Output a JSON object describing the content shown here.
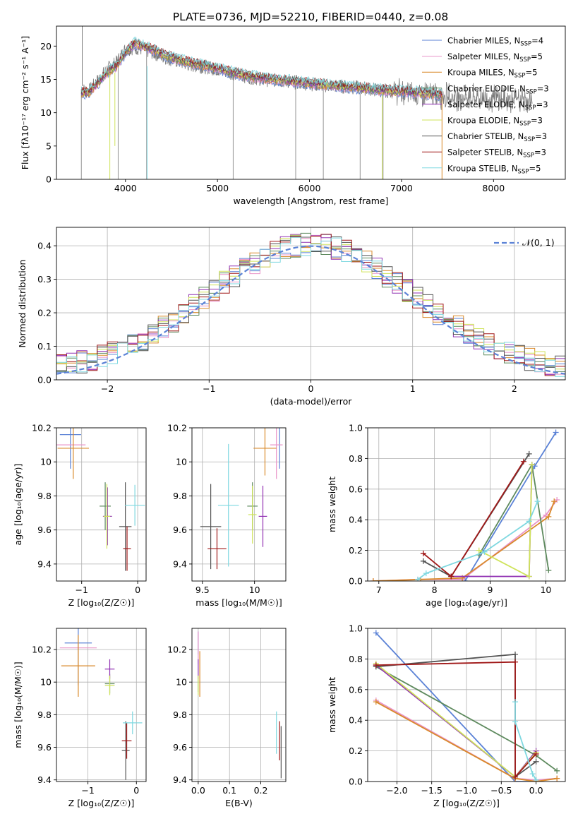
{
  "title": "PLATE=0736, MJD=52210, FIBERID=0440, z=0.08",
  "colors": [
    "#5b82d6",
    "#e994c8",
    "#d98a2a",
    "#5e8a5e",
    "#9132b3",
    "#cfe35a",
    "#555555",
    "#a01818",
    "#7fd8e0"
  ],
  "legend_labels": [
    {
      "base": "Chabrier MILES, N",
      "sub": "SSP",
      "tail": "=4"
    },
    {
      "base": "Salpeter MILES, N",
      "sub": "SSP",
      "tail": "=5"
    },
    {
      "base": "Kroupa MILES, N",
      "sub": "SSP",
      "tail": "=5"
    },
    {
      "base": "Chabrier ELODIE, N",
      "sub": "SSP",
      "tail": "=3"
    },
    {
      "base": "Salpeter ELODIE, N",
      "sub": "SSP",
      "tail": "=3"
    },
    {
      "base": "Kroupa ELODIE, N",
      "sub": "SSP",
      "tail": "=3"
    },
    {
      "base": "Chabrier STELIB, N",
      "sub": "SSP",
      "tail": "=3"
    },
    {
      "base": "Salpeter STELIB, N",
      "sub": "SSP",
      "tail": "=3"
    },
    {
      "base": "Kroupa STELIB, N",
      "sub": "SSP",
      "tail": "=5"
    }
  ],
  "chart_data": [
    {
      "id": "spectrum",
      "type": "line",
      "xlabel": "wavelength [Angstrom, rest frame]",
      "ylabel": "Flux [fλ10⁻¹⁷ erg cm⁻² s⁻¹ A⁻¹]",
      "xlim": [
        3250,
        8780
      ],
      "ylim": [
        0,
        23
      ],
      "xticks": [
        4000,
        5000,
        6000,
        7000,
        8000
      ],
      "yticks": [
        0,
        5,
        10,
        15,
        20
      ],
      "grid": false,
      "legend": "top-right",
      "data_x": [
        3520,
        3600,
        3700,
        3800,
        3900,
        4000,
        4100,
        4200,
        4300,
        4400,
        4500,
        4700,
        4900,
        5100,
        5300,
        5500,
        5700,
        5900,
        6100,
        6300,
        6500,
        6700,
        6900,
        7100,
        7300,
        7500,
        7700,
        7900,
        8100,
        8300,
        8500,
        8780
      ],
      "data_y": [
        13.5,
        13.2,
        14.8,
        16.5,
        17.5,
        19.5,
        19.8,
        19.5,
        19.0,
        18.5,
        18.0,
        17.2,
        16.8,
        16.2,
        15.5,
        15.0,
        14.8,
        14.5,
        14.2,
        14.0,
        13.8,
        13.5,
        13.2,
        13.0,
        12.8,
        12.5,
        12.3,
        12.2,
        12.0,
        11.8,
        11.6,
        11.5
      ],
      "model_y": [
        13.0,
        13.0,
        14.5,
        16.0,
        17.0,
        19.0,
        20.5,
        20.0,
        19.5,
        18.8,
        18.3,
        17.5,
        17.0,
        16.3,
        15.6,
        15.2,
        14.9,
        14.6,
        14.3,
        14.0,
        13.8,
        13.5,
        13.3,
        13.1,
        12.9,
        12.6,
        12.4,
        12.2,
        12.0,
        11.9,
        11.7,
        11.5
      ],
      "model_x_end": 7440
    },
    {
      "id": "residual-histogram",
      "type": "histogram",
      "xlabel": "(data-model)/error",
      "ylabel": "Normed distribution",
      "xlim": [
        -2.5,
        2.5
      ],
      "ylim": [
        0,
        0.455
      ],
      "xticks": [
        -2,
        -1,
        0,
        1,
        2
      ],
      "yticks": [
        0.0,
        0.1,
        0.2,
        0.3,
        0.4
      ],
      "grid": true,
      "legend": "top-right",
      "legend_label": "𝒩(0, 1)",
      "bin_width": 0.1,
      "reference_curve": "normal(0,1)",
      "reference_color": "#5b82d6"
    },
    {
      "id": "age-vs-metallicity",
      "type": "errorbar",
      "xlabel": "Z [log₁₀(Z/Z☉)]",
      "ylabel": "age  [log₁₀(age/yr)]",
      "xlim": [
        -1.45,
        0.15
      ],
      "ylim": [
        9.3,
        10.2
      ],
      "xticks": [
        -1,
        0
      ],
      "yticks": [
        9.4,
        9.6,
        9.8,
        10.0,
        10.2
      ],
      "grid": true,
      "points": [
        {
          "x": -1.2,
          "y": 10.16,
          "xerr": 0.19,
          "yerr": 0.2,
          "c": 0
        },
        {
          "x": -1.2,
          "y": 10.1,
          "xerr": 0.27,
          "yerr": 0.0,
          "c": 1
        },
        {
          "x": -1.15,
          "y": 10.08,
          "xerr": 0.28,
          "yerr": 0.18,
          "c": 2
        },
        {
          "x": -0.58,
          "y": 9.74,
          "xerr": 0.1,
          "yerr": 0.14,
          "c": 3
        },
        {
          "x": -0.54,
          "y": 9.68,
          "xerr": 0.08,
          "yerr": 0.17,
          "c": 4
        },
        {
          "x": -0.55,
          "y": 9.68,
          "xerr": 0.06,
          "yerr": 0.19,
          "c": 5
        },
        {
          "x": -0.22,
          "y": 9.62,
          "xerr": 0.11,
          "yerr": 0.26,
          "c": 6
        },
        {
          "x": -0.19,
          "y": 9.49,
          "xerr": 0.07,
          "yerr": 0.13,
          "c": 7
        },
        {
          "x": -0.05,
          "y": 9.745,
          "xerr": 0.18,
          "yerr": 0.12,
          "c": 8
        }
      ]
    },
    {
      "id": "age-vs-mass",
      "type": "errorbar",
      "xlabel": "mass [log₁₀(M/M☉)]",
      "ylabel": "",
      "xlim": [
        9.4,
        10.3
      ],
      "ylim": [
        9.3,
        10.2
      ],
      "xticks": [
        9.5,
        10.0
      ],
      "yticks": [
        9.4,
        9.6,
        9.8,
        10.0,
        10.2
      ],
      "grid": true,
      "points": [
        {
          "x": 10.24,
          "y": 10.16,
          "xerr": 0.0,
          "yerr": 0.2,
          "c": 0
        },
        {
          "x": 10.21,
          "y": 10.1,
          "xerr": 0.06,
          "yerr": 0.2,
          "c": 1
        },
        {
          "x": 10.1,
          "y": 10.08,
          "xerr": 0.11,
          "yerr": 0.16,
          "c": 2
        },
        {
          "x": 9.98,
          "y": 9.74,
          "xerr": 0.05,
          "yerr": 0.14,
          "c": 3
        },
        {
          "x": 10.08,
          "y": 9.68,
          "xerr": 0.04,
          "yerr": 0.18,
          "c": 4
        },
        {
          "x": 9.98,
          "y": 9.69,
          "xerr": 0.04,
          "yerr": 0.17,
          "c": 5
        },
        {
          "x": 9.58,
          "y": 9.62,
          "xerr": 0.1,
          "yerr": 0.25,
          "c": 6
        },
        {
          "x": 9.64,
          "y": 9.49,
          "xerr": 0.09,
          "yerr": 0.12,
          "c": 7
        },
        {
          "x": 9.75,
          "y": 9.745,
          "xerr": 0.1,
          "yerr": 0.36,
          "c": 8
        }
      ]
    },
    {
      "id": "mass-weight-vs-age",
      "type": "line",
      "xlabel": "age  [log₁₀(age/yr)]",
      "ylabel": "mass weight",
      "xlim": [
        6.8,
        10.35
      ],
      "ylim": [
        0,
        1.0
      ],
      "xticks": [
        7,
        8,
        9,
        10
      ],
      "yticks": [
        0.0,
        0.2,
        0.4,
        0.6,
        0.8,
        1.0
      ],
      "grid": true,
      "series": [
        {
          "c": 0,
          "x": [
            8.55,
            9.8,
            10.18
          ],
          "y": [
            0.0,
            0.75,
            0.97
          ]
        },
        {
          "c": 1,
          "x": [
            6.9,
            7.7,
            8.5,
            10.0,
            10.2
          ],
          "y": [
            0.0,
            0.01,
            0.01,
            0.43,
            0.53
          ]
        },
        {
          "c": 2,
          "x": [
            6.9,
            7.75,
            8.5,
            10.05,
            10.15
          ],
          "y": [
            0.0,
            0.01,
            0.02,
            0.42,
            0.52
          ]
        },
        {
          "c": 3,
          "x": [
            8.8,
            9.75,
            10.05
          ],
          "y": [
            0.17,
            0.76,
            0.07
          ]
        },
        {
          "c": 4,
          "x": [
            8.3,
            9.7,
            9.75
          ],
          "y": [
            0.03,
            0.03,
            0.76
          ]
        },
        {
          "c": 5,
          "x": [
            8.8,
            9.7,
            9.75
          ],
          "y": [
            0.2,
            0.03,
            0.76
          ]
        },
        {
          "c": 6,
          "x": [
            7.8,
            8.3,
            9.7
          ],
          "y": [
            0.13,
            0.03,
            0.83
          ]
        },
        {
          "c": 7,
          "x": [
            7.8,
            8.3,
            9.6
          ],
          "y": [
            0.18,
            0.03,
            0.78
          ]
        },
        {
          "c": 8,
          "x": [
            7.7,
            7.85,
            8.9,
            9.7,
            9.85
          ],
          "y": [
            0.01,
            0.05,
            0.19,
            0.39,
            0.52
          ]
        }
      ]
    },
    {
      "id": "mass-vs-metallicity",
      "type": "errorbar",
      "xlabel": "Z [log₁₀(Z/Z☉)]",
      "ylabel": "mass [log₁₀(M/M☉)]",
      "xlim": [
        -1.65,
        0.2
      ],
      "ylim": [
        9.39,
        10.33
      ],
      "xticks": [
        -1,
        0
      ],
      "yticks": [
        9.4,
        9.6,
        9.8,
        10.0,
        10.2
      ],
      "grid": true,
      "points": [
        {
          "x": -1.2,
          "y": 10.24,
          "xerr": 0.28,
          "yerr": 0.26,
          "c": 0
        },
        {
          "x": -1.2,
          "y": 10.21,
          "xerr": 0.38,
          "yerr": 0.0,
          "c": 1
        },
        {
          "x": -1.2,
          "y": 10.1,
          "xerr": 0.35,
          "yerr": 0.19,
          "c": 2
        },
        {
          "x": -0.55,
          "y": 9.99,
          "xerr": 0.1,
          "yerr": 0.06,
          "c": 3
        },
        {
          "x": -0.55,
          "y": 10.08,
          "xerr": 0.1,
          "yerr": 0.06,
          "c": 4
        },
        {
          "x": -0.55,
          "y": 9.98,
          "xerr": 0.1,
          "yerr": 0.06,
          "c": 5
        },
        {
          "x": -0.22,
          "y": 9.58,
          "xerr": 0.08,
          "yerr": 0.18,
          "c": 6
        },
        {
          "x": -0.2,
          "y": 9.64,
          "xerr": 0.1,
          "yerr": 0.11,
          "c": 7
        },
        {
          "x": -0.08,
          "y": 9.75,
          "xerr": 0.2,
          "yerr": 0.07,
          "c": 8
        }
      ]
    },
    {
      "id": "mass-vs-ebv",
      "type": "errorbar",
      "xlabel": "E(B-V)",
      "ylabel": "",
      "xlim": [
        -0.02,
        0.28
      ],
      "ylim": [
        9.39,
        10.33
      ],
      "xticks": [
        0.0,
        0.1,
        0.2
      ],
      "yticks": [
        9.4,
        9.6,
        9.8,
        10.0,
        10.2
      ],
      "grid": true,
      "points": [
        {
          "x": 0.0,
          "y": 10.24,
          "xerr": 0.0,
          "yerr": 0.07,
          "c": 0
        },
        {
          "x": 0.0,
          "y": 10.21,
          "xerr": 0.0,
          "yerr": 0.1,
          "c": 1
        },
        {
          "x": 0.005,
          "y": 10.05,
          "xerr": 0.0,
          "yerr": 0.14,
          "c": 2
        },
        {
          "x": 0.0,
          "y": 9.99,
          "xerr": 0.0,
          "yerr": 0.05,
          "c": 3
        },
        {
          "x": 0.0,
          "y": 10.08,
          "xerr": 0.0,
          "yerr": 0.06,
          "c": 4
        },
        {
          "x": 0.0,
          "y": 9.98,
          "xerr": 0.0,
          "yerr": 0.06,
          "c": 5
        },
        {
          "x": 0.265,
          "y": 9.57,
          "xerr": 0.0,
          "yerr": 0.16,
          "c": 6
        },
        {
          "x": 0.26,
          "y": 9.64,
          "xerr": 0.0,
          "yerr": 0.12,
          "c": 7
        },
        {
          "x": 0.25,
          "y": 9.69,
          "xerr": 0.0,
          "yerr": 0.13,
          "c": 8
        }
      ]
    },
    {
      "id": "mass-weight-vs-metallicity",
      "type": "line",
      "xlabel": "Z [log₁₀(Z/Z☉)]",
      "ylabel": "mass weight",
      "xlim": [
        -2.42,
        0.42
      ],
      "ylim": [
        0,
        1.0
      ],
      "xticks": [
        -2.0,
        -1.5,
        -1.0,
        -0.5,
        0.0
      ],
      "yticks": [
        0.0,
        0.2,
        0.4,
        0.6,
        0.8,
        1.0
      ],
      "grid": true,
      "series": [
        {
          "c": 0,
          "x": [
            -2.3,
            -0.3,
            0.0
          ],
          "y": [
            0.97,
            0.0,
            0.0
          ]
        },
        {
          "c": 1,
          "x": [
            -2.3,
            -0.3,
            0.0,
            0.3
          ],
          "y": [
            0.53,
            0.02,
            0.01,
            0.02
          ]
        },
        {
          "c": 2,
          "x": [
            -2.3,
            -0.3,
            0.0,
            0.3
          ],
          "y": [
            0.52,
            0.02,
            0.0,
            0.02
          ]
        },
        {
          "c": 3,
          "x": [
            -2.3,
            0.0,
            0.3
          ],
          "y": [
            0.75,
            0.17,
            0.07
          ]
        },
        {
          "c": 4,
          "x": [
            -2.3,
            -0.3,
            0.0
          ],
          "y": [
            0.76,
            0.03,
            0.2
          ]
        },
        {
          "c": 5,
          "x": [
            -2.3,
            -0.3,
            0.0
          ],
          "y": [
            0.77,
            0.03,
            0.19
          ]
        },
        {
          "c": 6,
          "x": [
            -2.3,
            -0.3,
            -0.3,
            0.0
          ],
          "y": [
            0.75,
            0.83,
            0.03,
            0.13
          ]
        },
        {
          "c": 7,
          "x": [
            -2.3,
            -0.3,
            -0.3,
            0.0
          ],
          "y": [
            0.76,
            0.78,
            0.03,
            0.18
          ]
        },
        {
          "c": 8,
          "x": [
            -0.3,
            -0.3,
            -0.05,
            0.0
          ],
          "y": [
            0.52,
            0.39,
            0.05,
            0.01
          ]
        }
      ]
    }
  ]
}
